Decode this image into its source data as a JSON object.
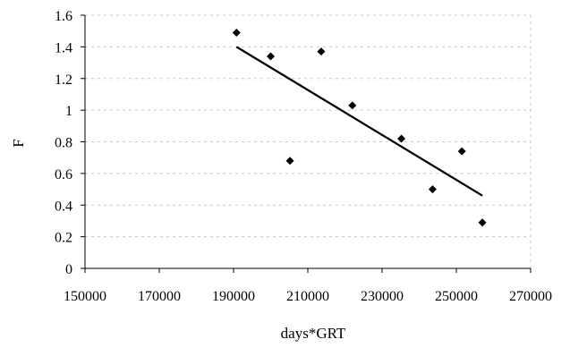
{
  "chart_data": {
    "type": "scatter",
    "title": "",
    "xlabel": "days*GRT",
    "ylabel": "F",
    "xlim": [
      150000,
      270000
    ],
    "ylim": [
      0,
      1.6
    ],
    "x_ticks": [
      150000,
      170000,
      190000,
      210000,
      230000,
      250000,
      270000
    ],
    "y_ticks": [
      0,
      0.2,
      0.4,
      0.6,
      0.8,
      1,
      1.2,
      1.4,
      1.6
    ],
    "x_tick_labels": [
      "150000",
      "170000",
      "190000",
      "210000",
      "230000",
      "250000",
      "270000"
    ],
    "y_tick_labels": [
      "0",
      "0.2",
      "0.4",
      "0.6",
      "0.8",
      "1",
      "1.2",
      "1.4",
      "1.6"
    ],
    "grid": true,
    "series": [
      {
        "type": "scatter",
        "marker": "diamond",
        "color": "#000000",
        "points": [
          {
            "x": 190800,
            "y": 1.49
          },
          {
            "x": 200000,
            "y": 1.34
          },
          {
            "x": 205200,
            "y": 0.68
          },
          {
            "x": 213600,
            "y": 1.37
          },
          {
            "x": 222000,
            "y": 1.03
          },
          {
            "x": 235200,
            "y": 0.82
          },
          {
            "x": 243600,
            "y": 0.5
          },
          {
            "x": 251500,
            "y": 0.74
          },
          {
            "x": 257000,
            "y": 0.29
          }
        ]
      },
      {
        "type": "line",
        "role": "linear-trendline",
        "color": "#000000",
        "points": [
          {
            "x": 190800,
            "y": 1.4
          },
          {
            "x": 257000,
            "y": 0.46
          }
        ]
      }
    ]
  }
}
